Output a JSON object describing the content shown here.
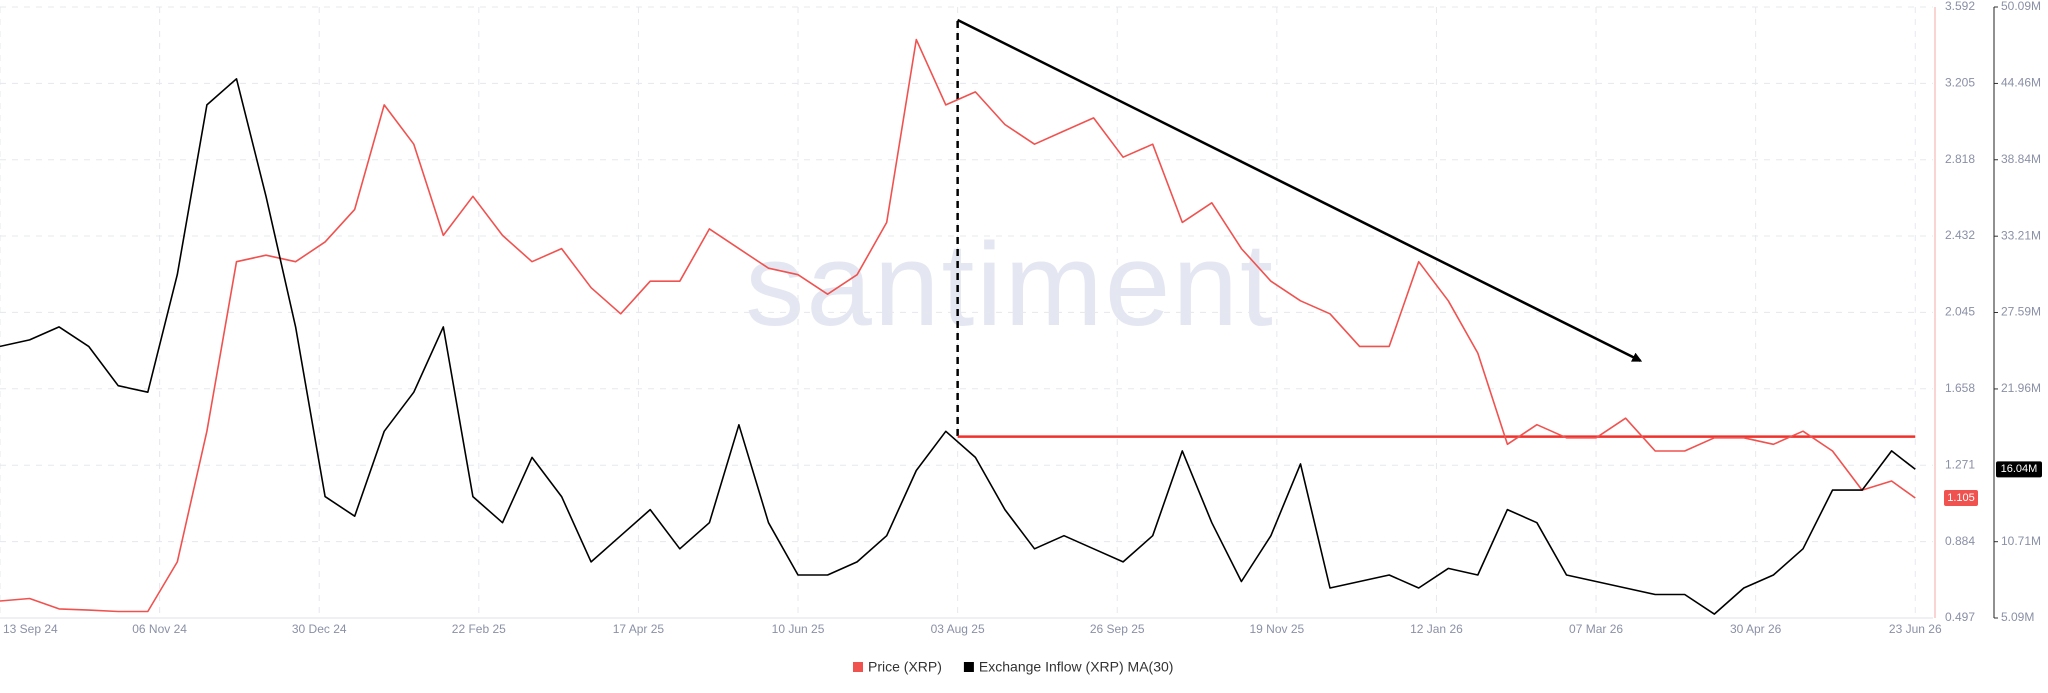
{
  "chart_data": {
    "type": "line",
    "watermark": "santiment",
    "x": [
      "2024-09-13",
      "2024-09-23",
      "2024-10-03",
      "2024-10-13",
      "2024-10-23",
      "2024-11-02",
      "2024-11-12",
      "2024-11-22",
      "2024-12-02",
      "2024-12-12",
      "2024-12-22",
      "2025-01-01",
      "2025-01-11",
      "2025-01-21",
      "2025-01-31",
      "2025-02-10",
      "2025-02-20",
      "2025-03-02",
      "2025-03-12",
      "2025-03-22",
      "2025-04-01",
      "2025-04-11",
      "2025-04-21",
      "2025-05-01",
      "2025-05-11",
      "2025-05-21",
      "2025-05-31",
      "2025-06-10",
      "2025-06-20",
      "2025-06-30",
      "2025-07-10",
      "2025-07-20",
      "2025-07-30",
      "2025-08-09",
      "2025-08-19",
      "2025-08-29",
      "2025-09-08",
      "2025-09-18",
      "2025-09-28",
      "2025-10-08",
      "2025-10-18",
      "2025-10-28",
      "2025-11-07",
      "2025-11-17",
      "2025-11-27",
      "2025-12-07",
      "2025-12-17",
      "2025-12-27",
      "2026-01-06",
      "2026-01-16",
      "2026-01-26",
      "2026-02-05",
      "2026-02-15",
      "2026-02-25",
      "2026-03-07",
      "2026-03-17",
      "2026-03-27",
      "2026-04-06",
      "2026-04-16",
      "2026-04-26",
      "2026-05-06",
      "2026-05-16",
      "2026-05-26",
      "2026-06-05",
      "2026-06-15",
      "2026-06-23"
    ],
    "xlim": [
      "2024-09-13",
      "2026-06-29"
    ],
    "xticks": [
      {
        "value": "2024-09-13",
        "label": "13 Sep 24"
      },
      {
        "value": "2024-11-06",
        "label": "06 Nov 24"
      },
      {
        "value": "2024-12-30",
        "label": "30 Dec 24"
      },
      {
        "value": "2025-02-22",
        "label": "22 Feb 25"
      },
      {
        "value": "2025-04-17",
        "label": "17 Apr 25"
      },
      {
        "value": "2025-06-10",
        "label": "10 Jun 25"
      },
      {
        "value": "2025-08-03",
        "label": "03 Aug 25"
      },
      {
        "value": "2025-09-26",
        "label": "26 Sep 25"
      },
      {
        "value": "2025-11-19",
        "label": "19 Nov 25"
      },
      {
        "value": "2026-01-12",
        "label": "12 Jan 26"
      },
      {
        "value": "2026-03-07",
        "label": "07 Mar 26"
      },
      {
        "value": "2026-04-30",
        "label": "30 Apr 26"
      },
      {
        "value": "2026-06-23",
        "label": "23 Jun 26"
      }
    ],
    "ylim": [
      0.497,
      3.592
    ],
    "yticks": [
      0.497,
      0.884,
      1.271,
      1.658,
      2.045,
      2.432,
      2.818,
      3.205,
      3.592
    ],
    "y2lim": [
      5090000,
      50090000
    ],
    "y2ticks": [
      {
        "value": 5090000,
        "label": "5.09M"
      },
      {
        "value": 10710000,
        "label": "10.71M"
      },
      {
        "value": 21960000,
        "label": "21.96M"
      },
      {
        "value": 27590000,
        "label": "27.59M"
      },
      {
        "value": 33210000,
        "label": "33.21M"
      },
      {
        "value": 38840000,
        "label": "38.84M"
      },
      {
        "value": 44460000,
        "label": "44.46M"
      },
      {
        "value": 50090000,
        "label": "50.09M"
      }
    ],
    "grid": true,
    "series": [
      {
        "name": "Price (XRP)",
        "color": "#f0524f",
        "values": [
          0.583,
          0.596,
          0.543,
          0.537,
          0.53,
          0.53,
          0.781,
          1.443,
          2.302,
          2.335,
          2.302,
          2.402,
          2.567,
          3.096,
          2.897,
          2.435,
          2.633,
          2.435,
          2.302,
          2.368,
          2.17,
          2.038,
          2.203,
          2.203,
          2.468,
          2.368,
          2.269,
          2.236,
          2.137,
          2.236,
          2.501,
          3.427,
          3.096,
          3.162,
          2.997,
          2.897,
          2.964,
          3.03,
          2.831,
          2.897,
          2.501,
          2.6,
          2.368,
          2.203,
          2.104,
          2.038,
          1.873,
          1.873,
          2.302,
          2.104,
          1.839,
          1.377,
          1.476,
          1.41,
          1.41,
          1.509,
          1.343,
          1.343,
          1.41,
          1.41,
          1.377,
          1.443,
          1.343,
          1.145,
          1.191,
          1.105
        ]
      },
      {
        "name": "Exchange Inflow (XRP) MA(30)",
        "color": "#000000",
        "axis": "y2",
        "last_value_label": "16.04M",
        "values": [
          25090000,
          25570000,
          26530000,
          25090000,
          22200000,
          21720000,
          30380000,
          42880000,
          44800000,
          36150000,
          26530000,
          14030000,
          12590000,
          18840000,
          21720000,
          26530000,
          14030000,
          12110000,
          16920000,
          14030000,
          9220000,
          11150000,
          13070000,
          10190000,
          12110000,
          19320000,
          12110000,
          8260000,
          8260000,
          9220000,
          11150000,
          15950000,
          18840000,
          16920000,
          13070000,
          10190000,
          11150000,
          10190000,
          9220000,
          11150000,
          17400000,
          12110000,
          7780000,
          11150000,
          16440000,
          7300000,
          7780000,
          8260000,
          7300000,
          8740000,
          8260000,
          13070000,
          12110000,
          8260000,
          7780000,
          7300000,
          6820000,
          6820000,
          5380000,
          7300000,
          8260000,
          10190000,
          14510000,
          14510000,
          17400000,
          16040000
        ]
      }
    ],
    "annotations": {
      "vertical_line": {
        "x": "2025-08-03",
        "to_value": 1.416,
        "color": "#000000"
      },
      "support_line": {
        "x": [
          "2025-08-03",
          "2026-06-23"
        ],
        "value": 1.416,
        "color": "#f0302a"
      },
      "trend_arrow": {
        "x": [
          "2025-08-03",
          "2026-03-22"
        ],
        "values": [
          3.526,
          1.8
        ],
        "color": "#000000"
      }
    }
  }
}
